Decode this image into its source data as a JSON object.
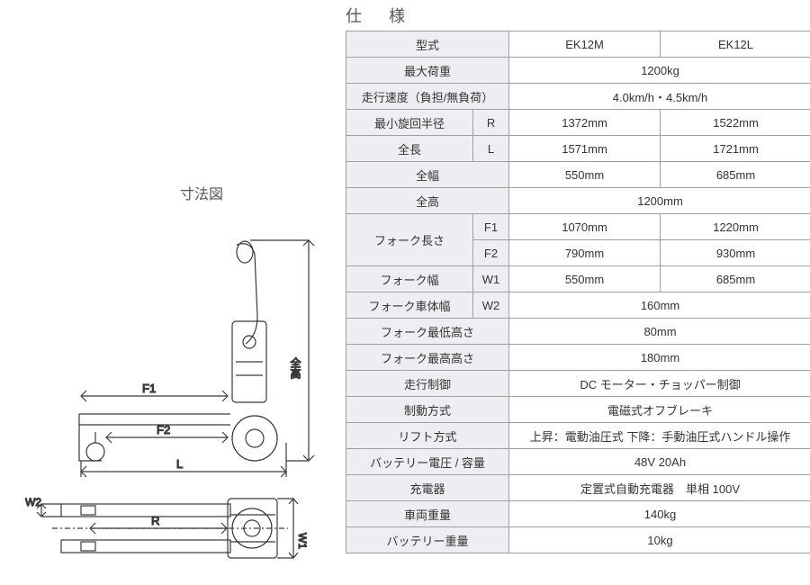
{
  "left": {
    "diagram_title": "寸法図",
    "labels": {
      "zenkou": "全高",
      "F1": "F1",
      "F2": "F2",
      "L": "L",
      "W2": "W2",
      "R": "R",
      "W1": "W1"
    },
    "colors": {
      "line": "#3a3a3a",
      "dim": "#666666"
    }
  },
  "spec": {
    "title": "仕　様",
    "header_bg": "#eceef1",
    "rows": [
      {
        "label": "型式",
        "sym": "",
        "vals": [
          "EK12M",
          "EK12L"
        ],
        "span": false
      },
      {
        "label": "最大荷重",
        "sym": "",
        "vals": [
          "1200kg"
        ],
        "span": true
      },
      {
        "label": "走行速度（負担/無負荷）",
        "sym": "",
        "vals": [
          "4.0km/h・4.5km/h"
        ],
        "span": true
      },
      {
        "label": "最小旋回半径",
        "sym": "R",
        "vals": [
          "1372mm",
          "1522mm"
        ],
        "span": false
      },
      {
        "label": "全長",
        "sym": "L",
        "vals": [
          "1571mm",
          "1721mm"
        ],
        "span": false
      },
      {
        "label": "全幅",
        "sym": "",
        "vals": [
          "550mm",
          "685mm"
        ],
        "span": false
      },
      {
        "label": "全高",
        "sym": "",
        "vals": [
          "1200mm"
        ],
        "span": true
      },
      {
        "label": "フォーク長さ",
        "sym": "F1",
        "vals": [
          "1070mm",
          "1220mm"
        ],
        "span": false,
        "rowspan": 2
      },
      {
        "label": "",
        "sym": "F2",
        "vals": [
          "790mm",
          "930mm"
        ],
        "span": false,
        "continued": true
      },
      {
        "label": "フォーク幅",
        "sym": "W1",
        "vals": [
          "550mm",
          "685mm"
        ],
        "span": false
      },
      {
        "label": "フォーク車体幅",
        "sym": "W2",
        "vals": [
          "160mm"
        ],
        "span": true
      },
      {
        "label": "フォーク最低高さ",
        "sym": "",
        "vals": [
          "80mm"
        ],
        "span": true
      },
      {
        "label": "フォーク最高高さ",
        "sym": "",
        "vals": [
          "180mm"
        ],
        "span": true
      },
      {
        "label": "走行制御",
        "sym": "",
        "vals": [
          "DC モーター・チョッパー制御"
        ],
        "span": true
      },
      {
        "label": "制動方式",
        "sym": "",
        "vals": [
          "電磁式オフブレーキ"
        ],
        "span": true
      },
      {
        "label": "リフト方式",
        "sym": "",
        "vals": [
          "上昇：電動油圧式 下降：手動油圧式ハンドル操作"
        ],
        "span": true
      },
      {
        "label": "バッテリー電圧 / 容量",
        "sym": "",
        "vals": [
          "48V 20Ah"
        ],
        "span": true
      },
      {
        "label": "充電器",
        "sym": "",
        "vals": [
          "定置式自動充電器　単相 100V"
        ],
        "span": true
      },
      {
        "label": "車両重量",
        "sym": "",
        "vals": [
          "140kg"
        ],
        "span": true
      },
      {
        "label": "バッテリー重量",
        "sym": "",
        "vals": [
          "10kg"
        ],
        "span": true
      }
    ]
  }
}
